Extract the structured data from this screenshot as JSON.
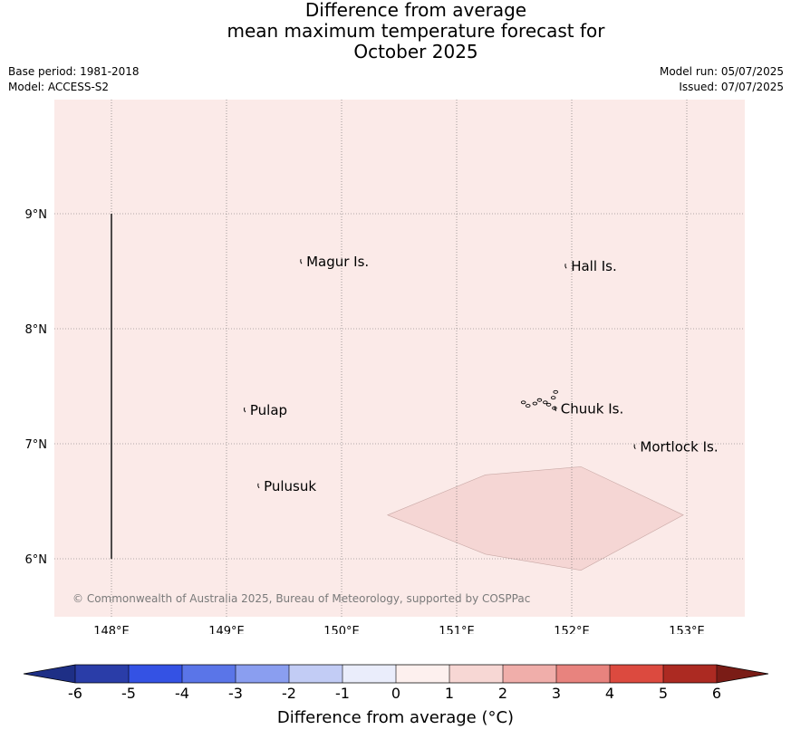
{
  "title": {
    "line1": "Difference from average",
    "line2": "mean maximum temperature forecast for",
    "line3": "October 2025"
  },
  "meta": {
    "base_period": "Base period: 1981-2018",
    "model": "Model: ACCESS-S2",
    "model_run": "Model run: 05/07/2025",
    "issued": "Issued: 07/07/2025"
  },
  "map": {
    "lon_range": [
      147.5,
      153.5
    ],
    "lat_range": [
      5.5,
      10.0
    ],
    "lon_ticks": [
      {
        "value": 148,
        "label": "148°E"
      },
      {
        "value": 149,
        "label": "149°E"
      },
      {
        "value": 150,
        "label": "150°E"
      },
      {
        "value": 151,
        "label": "151°E"
      },
      {
        "value": 152,
        "label": "152°E"
      },
      {
        "value": 153,
        "label": "153°E"
      }
    ],
    "lat_ticks": [
      {
        "value": 6,
        "label": "6°N"
      },
      {
        "value": 7,
        "label": "7°N"
      },
      {
        "value": 8,
        "label": "8°N"
      },
      {
        "value": 9,
        "label": "9°N"
      }
    ],
    "gridlines": true,
    "background_color": "#fbeae8",
    "anomaly_region": {
      "color": "#f5d6d4",
      "polygon": [
        [
          150.4,
          6.38
        ],
        [
          151.25,
          6.73
        ],
        [
          152.08,
          6.8
        ],
        [
          152.97,
          6.38
        ],
        [
          152.08,
          5.9
        ],
        [
          151.25,
          6.04
        ]
      ]
    },
    "boundary_line": {
      "lon": 148.0,
      "lat_from": 6.0,
      "lat_to": 9.0
    },
    "places": [
      {
        "name": "Magur Is.",
        "lon": 149.67,
        "lat": 8.55
      },
      {
        "name": "Hall Is.",
        "lon": 151.97,
        "lat": 8.51
      },
      {
        "name": "Pulap",
        "lon": 149.18,
        "lat": 7.26
      },
      {
        "name": "Chuuk Is.",
        "lon": 151.88,
        "lat": 7.27
      },
      {
        "name": "Mortlock Is.",
        "lon": 152.57,
        "lat": 6.94
      },
      {
        "name": "Pulusuk",
        "lon": 149.3,
        "lat": 6.6
      }
    ],
    "copyright": "© Commonwealth of Australia 2025, Bureau of Meteorology, supported by COSPPac"
  },
  "colorbar": {
    "title": "Difference from average (°C)",
    "ticks": [
      "-6",
      "-5",
      "-4",
      "-3",
      "-2",
      "-1",
      "0",
      "1",
      "2",
      "3",
      "4",
      "5",
      "6"
    ],
    "colors": [
      "#2a3da8",
      "#3452e4",
      "#5a75e8",
      "#8a9ef0",
      "#c2ccf5",
      "#eaedfb",
      "#fdf0ee",
      "#f7d7d4",
      "#f0aeaa",
      "#e8837e",
      "#dc4a3f",
      "#ac2a22"
    ],
    "under_color": "#1e2f86",
    "over_color": "#7a1c16"
  }
}
